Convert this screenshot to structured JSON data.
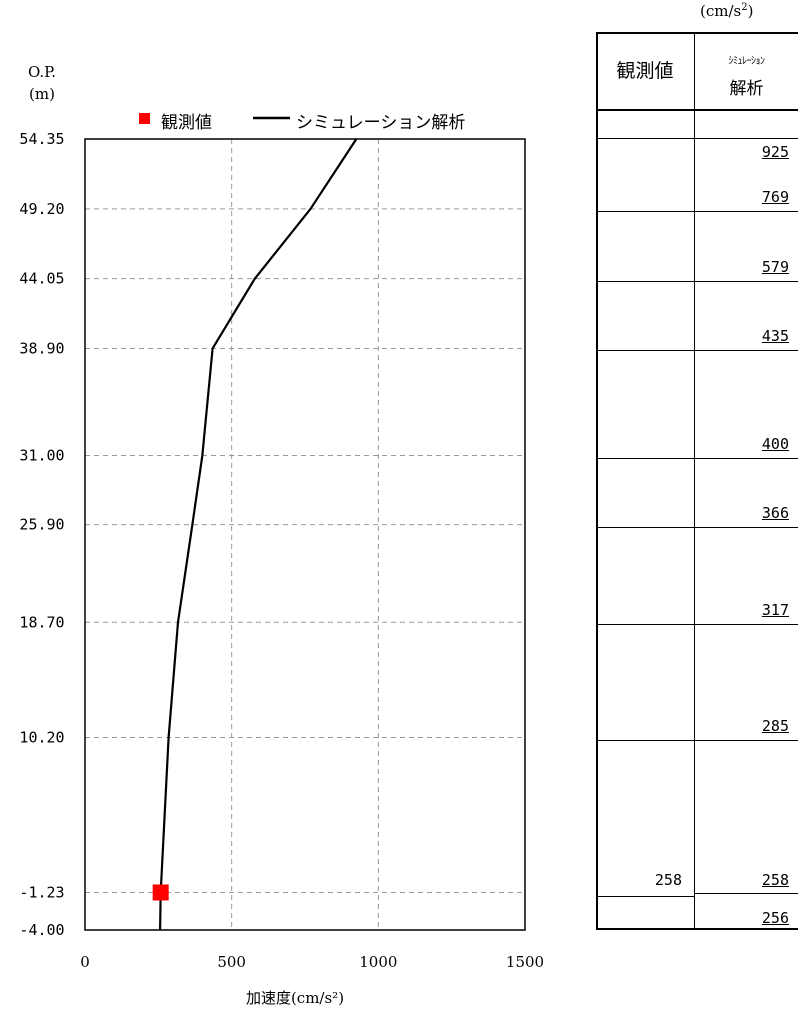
{
  "yaxis": {
    "label_line1": "O.P.",
    "label_line2": "(m)",
    "ticks": [
      "54.35",
      "49.20",
      "44.05",
      "38.90",
      "31.00",
      "25.90",
      "18.70",
      "10.20",
      "-1.23",
      "-4.00"
    ]
  },
  "xaxis": {
    "label": "加速度(cm/s²)",
    "ticks": [
      "0",
      "500",
      "1000",
      "1500"
    ]
  },
  "legend": {
    "observed": "観測値",
    "simulation": "シミュレーション解析"
  },
  "colors": {
    "observed": "#ff0000",
    "simulation": "#000000",
    "grid": "#9a9a9a"
  },
  "table": {
    "unit": "(cm/s",
    "unit_sup": "2",
    "unit_close": ")",
    "header_observed": "観測値",
    "header_sim_line1": "ｼﾐｭﾚｰｼｮﾝ",
    "header_sim_line2": "解析",
    "rows": [
      {
        "observed": "",
        "simulation": "925"
      },
      {
        "observed": "",
        "simulation": "769"
      },
      {
        "observed": "",
        "simulation": "579"
      },
      {
        "observed": "",
        "simulation": "435"
      },
      {
        "observed": "",
        "simulation": "400"
      },
      {
        "observed": "",
        "simulation": "366"
      },
      {
        "observed": "",
        "simulation": "317"
      },
      {
        "observed": "",
        "simulation": "285"
      },
      {
        "observed": "258",
        "simulation": "258"
      },
      {
        "observed": "",
        "simulation": "256"
      }
    ]
  },
  "chart_data": {
    "type": "line",
    "xlabel": "加速度(cm/s²)",
    "ylabel": "O.P. (m)",
    "xlim": [
      0,
      1500
    ],
    "ylim": [
      -4.0,
      54.35
    ],
    "grid": true,
    "legend_position": "top",
    "series": [
      {
        "name": "シミュレーション解析",
        "style": "line",
        "points": [
          {
            "x": 256,
            "y": -4.0
          },
          {
            "x": 258,
            "y": -1.23
          },
          {
            "x": 285,
            "y": 10.2
          },
          {
            "x": 317,
            "y": 18.7
          },
          {
            "x": 366,
            "y": 25.9
          },
          {
            "x": 400,
            "y": 31.0
          },
          {
            "x": 435,
            "y": 38.9
          },
          {
            "x": 579,
            "y": 44.05
          },
          {
            "x": 769,
            "y": 49.2
          },
          {
            "x": 925,
            "y": 54.35
          }
        ]
      },
      {
        "name": "観測値",
        "style": "marker",
        "points": [
          {
            "x": 258,
            "y": -1.23
          }
        ]
      }
    ]
  }
}
